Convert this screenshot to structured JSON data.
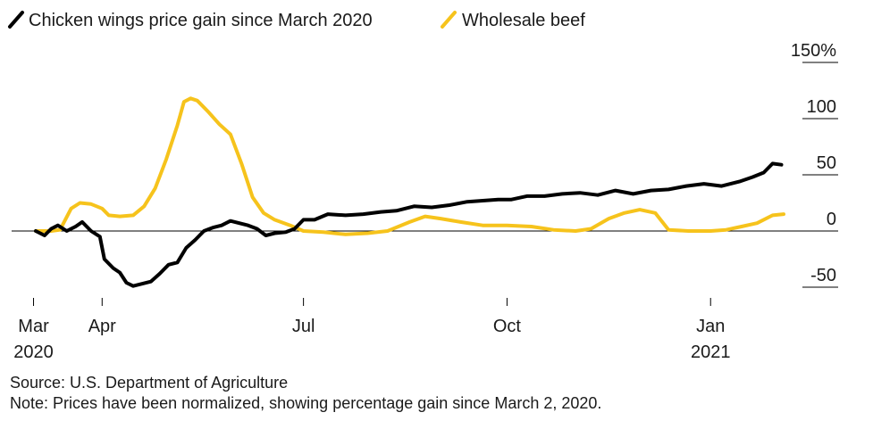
{
  "chart_data": {
    "type": "line",
    "title": "",
    "xlabel": "",
    "ylabel": "",
    "y_unit": "%",
    "ylim": [
      -50,
      150
    ],
    "y_ticks": [
      {
        "value": 150,
        "label": "150%"
      },
      {
        "value": 100,
        "label": "100"
      },
      {
        "value": 50,
        "label": "50"
      },
      {
        "value": 0,
        "label": "0"
      },
      {
        "value": -50,
        "label": "-50"
      }
    ],
    "x_range": [
      "2020-03-02",
      "2021-02-01"
    ],
    "x_ticks": [
      {
        "date": "2020-03-01",
        "label": "Mar",
        "sublabel": "2020"
      },
      {
        "date": "2020-04-01",
        "label": "Apr",
        "sublabel": ""
      },
      {
        "date": "2020-07-01",
        "label": "Jul",
        "sublabel": ""
      },
      {
        "date": "2020-10-01",
        "label": "Oct",
        "sublabel": ""
      },
      {
        "date": "2021-01-01",
        "label": "Jan",
        "sublabel": "2021"
      }
    ],
    "legend_position": "top-left",
    "series": [
      {
        "name": "Chicken wings price gain since March 2020",
        "color": "#000000",
        "points": [
          [
            "2020-03-02",
            0
          ],
          [
            "2020-03-06",
            -4
          ],
          [
            "2020-03-09",
            2
          ],
          [
            "2020-03-12",
            5
          ],
          [
            "2020-03-16",
            0
          ],
          [
            "2020-03-20",
            4
          ],
          [
            "2020-03-23",
            8
          ],
          [
            "2020-03-27",
            0
          ],
          [
            "2020-03-31",
            -5
          ],
          [
            "2020-04-02",
            -25
          ],
          [
            "2020-04-06",
            -33
          ],
          [
            "2020-04-09",
            -37
          ],
          [
            "2020-04-12",
            -46
          ],
          [
            "2020-04-15",
            -49
          ],
          [
            "2020-04-19",
            -47
          ],
          [
            "2020-04-23",
            -45
          ],
          [
            "2020-04-27",
            -38
          ],
          [
            "2020-05-01",
            -30
          ],
          [
            "2020-05-05",
            -28
          ],
          [
            "2020-05-09",
            -15
          ],
          [
            "2020-05-13",
            -8
          ],
          [
            "2020-05-17",
            0
          ],
          [
            "2020-05-21",
            3
          ],
          [
            "2020-05-25",
            5
          ],
          [
            "2020-05-29",
            9
          ],
          [
            "2020-06-02",
            7
          ],
          [
            "2020-06-06",
            5
          ],
          [
            "2020-06-10",
            2
          ],
          [
            "2020-06-14",
            -4
          ],
          [
            "2020-06-18",
            -2
          ],
          [
            "2020-06-23",
            -1
          ],
          [
            "2020-06-27",
            2
          ],
          [
            "2020-07-01",
            10
          ],
          [
            "2020-07-06",
            10
          ],
          [
            "2020-07-12",
            15
          ],
          [
            "2020-07-20",
            14
          ],
          [
            "2020-07-28",
            15
          ],
          [
            "2020-08-05",
            17
          ],
          [
            "2020-08-12",
            18
          ],
          [
            "2020-08-20",
            22
          ],
          [
            "2020-08-28",
            21
          ],
          [
            "2020-09-05",
            23
          ],
          [
            "2020-09-13",
            26
          ],
          [
            "2020-09-20",
            27
          ],
          [
            "2020-09-27",
            28
          ],
          [
            "2020-10-03",
            28
          ],
          [
            "2020-10-10",
            31
          ],
          [
            "2020-10-18",
            31
          ],
          [
            "2020-10-26",
            33
          ],
          [
            "2020-11-03",
            34
          ],
          [
            "2020-11-11",
            32
          ],
          [
            "2020-11-19",
            36
          ],
          [
            "2020-11-27",
            33
          ],
          [
            "2020-12-05",
            36
          ],
          [
            "2020-12-13",
            37
          ],
          [
            "2020-12-21",
            40
          ],
          [
            "2020-12-29",
            42
          ],
          [
            "2021-01-06",
            40
          ],
          [
            "2021-01-14",
            44
          ],
          [
            "2021-01-20",
            48
          ],
          [
            "2021-01-25",
            52
          ],
          [
            "2021-01-29",
            60
          ],
          [
            "2021-02-02",
            59
          ]
        ]
      },
      {
        "name": "Wholesale beef",
        "color": "#f6c31c",
        "points": [
          [
            "2020-03-02",
            0
          ],
          [
            "2020-03-09",
            0
          ],
          [
            "2020-03-13",
            1
          ],
          [
            "2020-03-18",
            20
          ],
          [
            "2020-03-22",
            25
          ],
          [
            "2020-03-27",
            24
          ],
          [
            "2020-04-01",
            20
          ],
          [
            "2020-04-04",
            14
          ],
          [
            "2020-04-09",
            13
          ],
          [
            "2020-04-15",
            14
          ],
          [
            "2020-04-20",
            22
          ],
          [
            "2020-04-25",
            38
          ],
          [
            "2020-04-30",
            64
          ],
          [
            "2020-05-05",
            94
          ],
          [
            "2020-05-08",
            115
          ],
          [
            "2020-05-11",
            118
          ],
          [
            "2020-05-14",
            116
          ],
          [
            "2020-05-19",
            106
          ],
          [
            "2020-05-24",
            95
          ],
          [
            "2020-05-29",
            86
          ],
          [
            "2020-06-03",
            60
          ],
          [
            "2020-06-08",
            30
          ],
          [
            "2020-06-13",
            16
          ],
          [
            "2020-06-18",
            10
          ],
          [
            "2020-06-25",
            5
          ],
          [
            "2020-07-01",
            0
          ],
          [
            "2020-07-10",
            -1
          ],
          [
            "2020-07-20",
            -3
          ],
          [
            "2020-07-30",
            -2
          ],
          [
            "2020-08-08",
            0
          ],
          [
            "2020-08-18",
            8
          ],
          [
            "2020-08-25",
            13
          ],
          [
            "2020-09-01",
            11
          ],
          [
            "2020-09-10",
            8
          ],
          [
            "2020-09-20",
            5
          ],
          [
            "2020-10-01",
            5
          ],
          [
            "2020-10-12",
            4
          ],
          [
            "2020-10-22",
            1
          ],
          [
            "2020-11-01",
            0
          ],
          [
            "2020-11-08",
            2
          ],
          [
            "2020-11-16",
            11
          ],
          [
            "2020-11-23",
            16
          ],
          [
            "2020-11-30",
            19
          ],
          [
            "2020-12-07",
            16
          ],
          [
            "2020-12-13",
            1
          ],
          [
            "2020-12-22",
            0
          ],
          [
            "2021-01-01",
            0
          ],
          [
            "2021-01-08",
            1
          ],
          [
            "2021-01-15",
            4
          ],
          [
            "2021-01-22",
            7
          ],
          [
            "2021-01-29",
            14
          ],
          [
            "2021-02-03",
            15
          ]
        ]
      }
    ]
  },
  "footer": {
    "source": "Source: U.S. Department of Agriculture",
    "note": "Note: Prices have been normalized, showing percentage gain since March 2, 2020."
  }
}
